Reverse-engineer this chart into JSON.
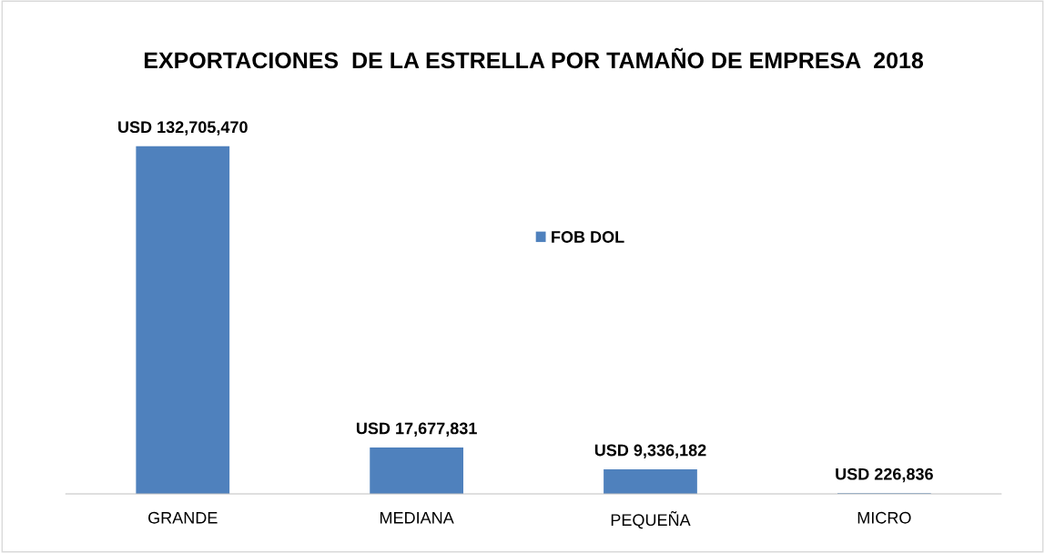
{
  "chart_data": {
    "type": "bar",
    "title": "EXPORTACIONES  DE LA ESTRELLA POR TAMAÑO DE EMPRESA  2018",
    "categories": [
      "GRANDE",
      "MEDIANA",
      "PEQUEÑA",
      "MICRO"
    ],
    "series": [
      {
        "name": "FOB DOL",
        "color": "#4f81bd",
        "values": [
          132705470,
          17677831,
          9336182,
          226836
        ],
        "value_labels": [
          "USD 132,705,470",
          "USD 17,677,831",
          "USD 9,336,182",
          "USD 226,836"
        ]
      }
    ],
    "tick_labels": "x",
    "grid": false,
    "legend": "center"
  }
}
